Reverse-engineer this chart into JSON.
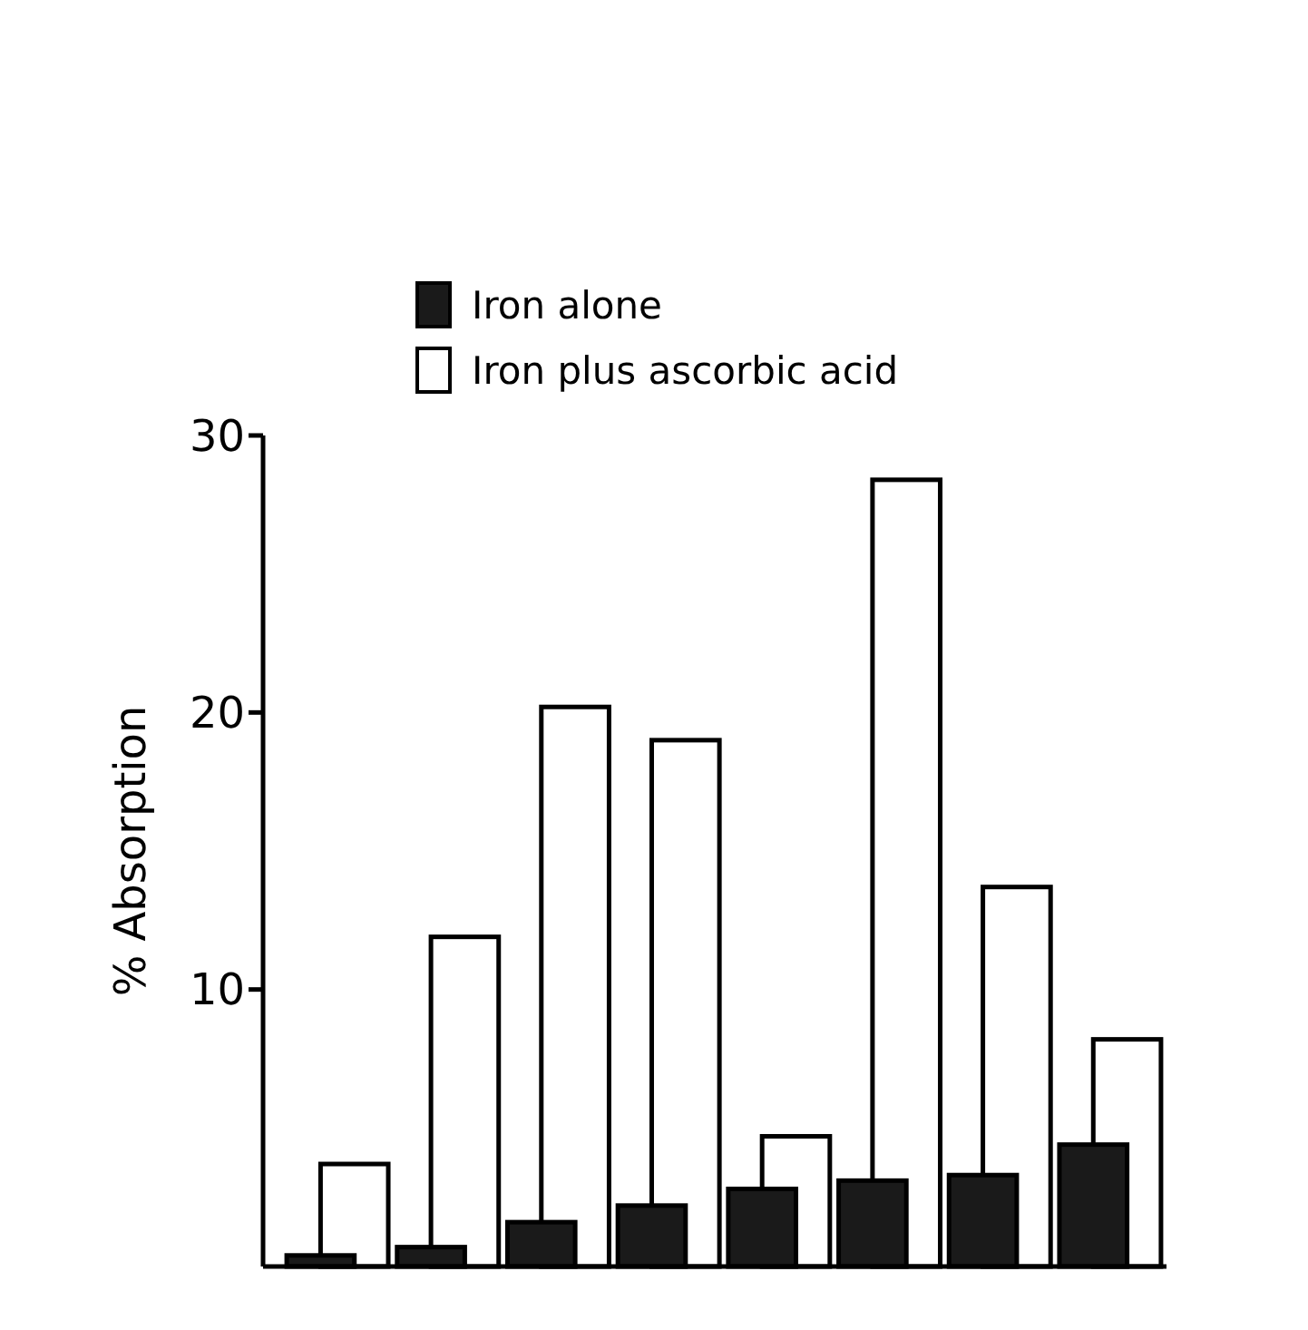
{
  "chart_data": {
    "type": "bar",
    "ylabel": "% Absorption",
    "categories": [
      null,
      null,
      null,
      null,
      null,
      null,
      null,
      null
    ],
    "series": [
      {
        "name": "Iron alone",
        "color": "#1a1a1a",
        "values": [
          0.4,
          0.7,
          1.6,
          2.2,
          2.8,
          3.1,
          3.3,
          4.4
        ]
      },
      {
        "name": "Iron plus ascorbic acid",
        "color": "#ffffff",
        "values": [
          3.7,
          11.9,
          20.2,
          19.0,
          4.7,
          28.4,
          13.7,
          8.2
        ]
      }
    ],
    "ylim": [
      0,
      30
    ],
    "yticks": [
      10,
      20,
      30
    ],
    "legend": "top left"
  }
}
